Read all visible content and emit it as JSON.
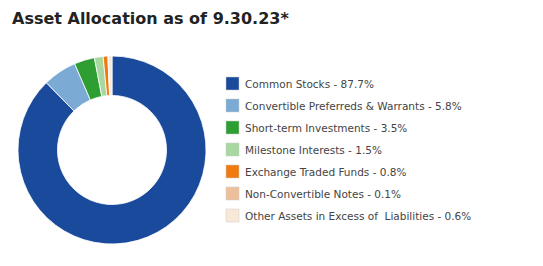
{
  "chart_data": {
    "type": "pie",
    "title": "Asset Allocation as of 9.30.23*",
    "categories": [
      "Common Stocks - 87.7%",
      "Convertible Preferreds & Warrants - 5.8%",
      "Short-term Investments - 3.5%",
      "Milestone Interests - 1.5%",
      "Exchange Traded Funds - 0.8%",
      "Non-Convertible Notes - 0.1%",
      "Other Assets in Excess of  Liabilities - 0.6%"
    ],
    "values": [
      87.7,
      5.8,
      3.5,
      1.5,
      0.8,
      0.1,
      0.6
    ],
    "colors": [
      "#1A4A9B",
      "#7BAAD4",
      "#2E9E32",
      "#A8D8A0",
      "#F07A10",
      "#ECC09A",
      "#F8E8D8"
    ],
    "legend": "right"
  }
}
